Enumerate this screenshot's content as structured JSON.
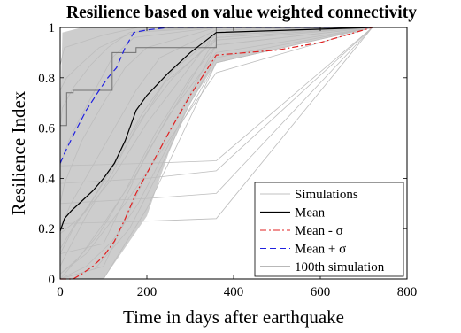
{
  "chart_data": {
    "type": "line",
    "title": "Resilience based on value weighted connectivity",
    "xlabel": "Time in days after earthquake",
    "ylabel": "Resilience Index",
    "xlim": [
      0,
      800
    ],
    "ylim": [
      0,
      1
    ],
    "xticks": [
      0,
      200,
      400,
      600,
      800
    ],
    "yticks": [
      0,
      0.2,
      0.4,
      0.6,
      0.8,
      1
    ],
    "xtick_labels": [
      "0",
      "200",
      "400",
      "600",
      "800"
    ],
    "ytick_labels": [
      "0",
      "0.2",
      "0.4",
      "0.6",
      "0.8",
      "1"
    ],
    "grid": false,
    "legend_position": "bottom-right",
    "colors": {
      "simulations": "#c8c8c8",
      "mean": "#000000",
      "mean_minus": "#e02020",
      "mean_plus": "#2020e0",
      "sim100": "#707070"
    },
    "legend": [
      {
        "key": "simulations",
        "label": "Simulations",
        "style": "solid"
      },
      {
        "key": "mean",
        "label": "Mean",
        "style": "solid"
      },
      {
        "key": "mean_minus",
        "label": "Mean - σ",
        "style": "dashdot"
      },
      {
        "key": "mean_plus",
        "label": "Mean + σ",
        "style": "dashed"
      },
      {
        "key": "sim100",
        "label": "100th simulation",
        "style": "solid"
      }
    ],
    "series": [
      {
        "key": "mean",
        "name": "Mean",
        "x": [
          0,
          10,
          25,
          50,
          75,
          100,
          125,
          150,
          175,
          200,
          250,
          300,
          360,
          720
        ],
        "y": [
          0.19,
          0.24,
          0.27,
          0.31,
          0.35,
          0.4,
          0.46,
          0.55,
          0.67,
          0.73,
          0.82,
          0.9,
          0.98,
          1.0
        ]
      },
      {
        "key": "mean_minus",
        "name": "Mean - σ",
        "x": [
          0,
          30,
          50,
          75,
          100,
          125,
          150,
          175,
          200,
          250,
          300,
          360,
          500,
          600,
          720
        ],
        "y": [
          0.0,
          0.0,
          0.02,
          0.05,
          0.09,
          0.15,
          0.24,
          0.34,
          0.42,
          0.58,
          0.73,
          0.89,
          0.91,
          0.94,
          1.0
        ]
      },
      {
        "key": "mean_plus",
        "name": "Mean + σ",
        "x": [
          0,
          10,
          30,
          60,
          90,
          110,
          130,
          150,
          170,
          200,
          250,
          300,
          360,
          720
        ],
        "y": [
          0.46,
          0.5,
          0.57,
          0.67,
          0.75,
          0.8,
          0.84,
          0.92,
          0.98,
          0.99,
          1.0,
          1.0,
          1.0,
          1.0
        ]
      },
      {
        "key": "sim100",
        "name": "100th simulation",
        "x": [
          0,
          15,
          15,
          30,
          30,
          120,
          120,
          175,
          175,
          360,
          360,
          720
        ],
        "y": [
          0.61,
          0.61,
          0.74,
          0.74,
          0.75,
          0.75,
          0.9,
          0.9,
          0.92,
          0.92,
          1.0,
          1.0
        ]
      }
    ],
    "simulation_band": {
      "lower": {
        "x": [
          0,
          100,
          200,
          250,
          300,
          360,
          720
        ],
        "y": [
          0.0,
          0.0,
          0.25,
          0.5,
          0.7,
          0.86,
          1.0
        ]
      },
      "upper": {
        "x": [
          0,
          5,
          50,
          100,
          150,
          200,
          300,
          360,
          720
        ],
        "y": [
          0.62,
          0.98,
          1.0,
          1.0,
          1.0,
          1.0,
          1.0,
          1.0,
          1.0
        ]
      }
    },
    "simulations": [
      {
        "x": [
          0,
          20,
          60,
          120,
          180,
          260,
          360,
          720
        ],
        "y": [
          0.05,
          0.12,
          0.25,
          0.42,
          0.62,
          0.8,
          0.96,
          1.0
        ]
      },
      {
        "x": [
          0,
          40,
          90,
          150,
          220,
          300,
          360,
          720
        ],
        "y": [
          0.02,
          0.08,
          0.18,
          0.35,
          0.58,
          0.8,
          0.93,
          1.0
        ]
      },
      {
        "x": [
          0,
          10,
          50,
          100,
          150,
          200,
          360,
          720
        ],
        "y": [
          0.3,
          0.38,
          0.55,
          0.7,
          0.84,
          0.92,
          1.0,
          1.0
        ]
      },
      {
        "x": [
          0,
          30,
          80,
          130,
          190,
          260,
          360,
          720
        ],
        "y": [
          0.1,
          0.2,
          0.33,
          0.48,
          0.66,
          0.83,
          0.97,
          1.0
        ]
      },
      {
        "x": [
          0,
          60,
          120,
          180,
          240,
          300,
          360,
          720
        ],
        "y": [
          0.0,
          0.05,
          0.15,
          0.3,
          0.5,
          0.7,
          0.88,
          1.0
        ]
      },
      {
        "x": [
          0,
          20,
          40,
          80,
          120,
          170,
          360,
          720
        ],
        "y": [
          0.45,
          0.55,
          0.62,
          0.75,
          0.88,
          0.96,
          1.0,
          1.0
        ]
      },
      {
        "x": [
          0,
          5,
          30,
          70,
          110,
          160,
          360,
          720
        ],
        "y": [
          0.6,
          0.68,
          0.76,
          0.85,
          0.92,
          0.98,
          1.0,
          1.0
        ]
      },
      {
        "x": [
          0,
          50,
          100,
          170,
          250,
          360,
          720
        ],
        "y": [
          0.0,
          0.1,
          0.22,
          0.4,
          0.65,
          0.9,
          1.0
        ]
      },
      {
        "x": [
          0,
          25,
          75,
          125,
          175,
          230,
          360,
          720
        ],
        "y": [
          0.2,
          0.3,
          0.45,
          0.6,
          0.75,
          0.88,
          0.99,
          1.0
        ]
      },
      {
        "x": [
          0,
          80,
          160,
          220,
          280,
          360,
          720
        ],
        "y": [
          0.0,
          0.04,
          0.2,
          0.4,
          0.62,
          0.86,
          1.0
        ]
      },
      {
        "x": [
          0,
          15,
          45,
          90,
          140,
          190,
          360,
          720
        ],
        "y": [
          0.75,
          0.8,
          0.85,
          0.92,
          0.96,
          0.99,
          1.0,
          1.0
        ]
      },
      {
        "x": [
          0,
          35,
          70,
          120,
          170,
          240,
          360,
          720
        ],
        "y": [
          0.12,
          0.22,
          0.3,
          0.44,
          0.58,
          0.78,
          0.95,
          1.0
        ]
      },
      {
        "x": [
          0,
          60,
          150,
          250,
          360,
          720
        ],
        "y": [
          0.02,
          0.1,
          0.3,
          0.55,
          0.82,
          1.0
        ]
      },
      {
        "x": [
          0,
          100,
          200,
          360,
          720
        ],
        "y": [
          0.0,
          0.0,
          0.28,
          0.86,
          1.0
        ]
      },
      {
        "x": [
          0,
          100,
          200,
          360,
          720
        ],
        "y": [
          0.0,
          0.05,
          0.42,
          0.93,
          1.0
        ]
      },
      {
        "x": [
          0,
          10,
          100,
          180,
          360,
          720
        ],
        "y": [
          0.85,
          0.92,
          0.97,
          1.0,
          1.0,
          1.0
        ]
      },
      {
        "x": [
          0,
          200,
          360,
          720
        ],
        "y": [
          0.45,
          0.46,
          0.47,
          1.0
        ]
      },
      {
        "x": [
          0,
          200,
          360,
          720
        ],
        "y": [
          0.38,
          0.4,
          0.43,
          1.0
        ]
      },
      {
        "x": [
          0,
          200,
          360,
          720
        ],
        "y": [
          0.3,
          0.32,
          0.34,
          1.0
        ]
      },
      {
        "x": [
          0,
          200,
          360,
          720
        ],
        "y": [
          0.22,
          0.23,
          0.24,
          1.0
        ]
      },
      {
        "x": [
          0,
          100,
          200,
          360,
          720
        ],
        "y": [
          0.1,
          0.14,
          0.5,
          0.96,
          1.0
        ]
      },
      {
        "x": [
          0,
          50,
          120,
          200,
          360,
          720
        ],
        "y": [
          0.18,
          0.25,
          0.4,
          0.62,
          0.98,
          1.0
        ]
      }
    ]
  }
}
